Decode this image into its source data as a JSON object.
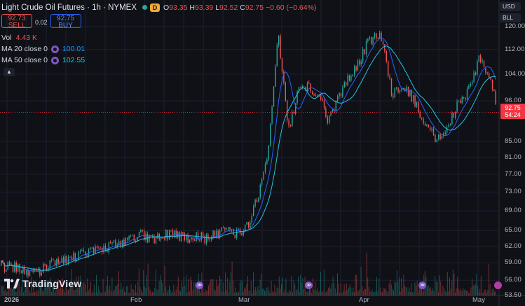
{
  "header": {
    "symbol_title": "Light Crude Oil Futures · 1h · NYMEX",
    "badge": "D",
    "ohlc": {
      "o_label": "O",
      "o": "93.35",
      "h_label": "H",
      "h": "93.39",
      "l_label": "L",
      "l": "92.52",
      "c_label": "C",
      "c": "92.75",
      "change": "−0.60 (−0.64%)"
    }
  },
  "trade": {
    "sell_price": "92.73",
    "sell_label": "SELL",
    "spread": "0.02",
    "buy_price": "92.75",
    "buy_label": "BUY"
  },
  "indicators": {
    "vol_label": "Vol",
    "vol_value": "4.43 K",
    "ma20_label": "MA 20 close 0",
    "ma20_value": "100.01",
    "ma50_label": "MA 50 close 0",
    "ma50_value": "102.55"
  },
  "collapse_icon": "chevron-up-icon",
  "price_scale": {
    "currency": "USD",
    "unit": "BLL",
    "ticks": [
      "120.00",
      "112.00",
      "104.00",
      "96.00",
      "85.00",
      "81.00",
      "77.00",
      "73.00",
      "69.00",
      "65.00",
      "62.00",
      "59.00",
      "56.00",
      "53.50"
    ],
    "current_price": "92.75",
    "countdown": "54:24"
  },
  "time_axis": [
    "2026",
    "Feb",
    "Mar",
    "Apr",
    "May"
  ],
  "logo_text": "TradingView",
  "colors": {
    "up": "#26a69a",
    "down": "#ef5350",
    "ma20": "#2962ff",
    "ma50": "#26c6da",
    "background": "#0f1117",
    "grid": "#1c2030",
    "current": "#f23645"
  },
  "chart_data": {
    "type": "candlestick",
    "title": "Light Crude Oil Futures · 1h · NYMEX",
    "ylim": [
      53.5,
      122
    ],
    "y_scale": "log",
    "x_categories": [
      "2026",
      "Feb",
      "Mar",
      "Apr",
      "May"
    ],
    "close_path": [
      [
        "2026",
        58.5
      ],
      [
        "2026",
        58.0
      ],
      [
        "2026",
        56.8
      ],
      [
        "2026",
        58.5
      ],
      [
        "2026",
        59.5
      ],
      [
        "2026",
        60.0
      ],
      [
        "2026",
        61.0
      ],
      [
        "2026",
        61.5
      ],
      [
        "2026",
        62.5
      ],
      [
        "2026",
        63.0
      ],
      [
        "Feb",
        64.5
      ],
      [
        "Feb",
        63.0
      ],
      [
        "Feb",
        64.0
      ],
      [
        "Feb",
        64.5
      ],
      [
        "Feb",
        63.5
      ],
      [
        "Feb",
        64.0
      ],
      [
        "Feb",
        63.5
      ],
      [
        "Feb",
        64.5
      ],
      [
        "Feb",
        65.0
      ],
      [
        "Feb",
        64.5
      ],
      [
        "Mar",
        66.0
      ],
      [
        "Mar",
        72.0
      ],
      [
        "Mar",
        81.0
      ],
      [
        "Mar",
        117.0
      ],
      [
        "Mar",
        87.0
      ],
      [
        "Mar",
        99.0
      ],
      [
        "Mar",
        100.0
      ],
      [
        "Mar",
        98.0
      ],
      [
        "Mar",
        90.0
      ],
      [
        "Mar",
        97.0
      ],
      [
        "Mar",
        103.0
      ],
      [
        "Mar",
        108.0
      ],
      [
        "Apr",
        115.0
      ],
      [
        "Apr",
        117.0
      ],
      [
        "Apr",
        98.0
      ],
      [
        "Apr",
        101.0
      ],
      [
        "Apr",
        96.0
      ],
      [
        "Apr",
        89.0
      ],
      [
        "Apr",
        85.0
      ],
      [
        "Apr",
        90.0
      ],
      [
        "Apr",
        96.0
      ],
      [
        "Apr",
        100.0
      ],
      [
        "May",
        110.0
      ],
      [
        "May",
        104.0
      ],
      [
        "May",
        103.0
      ],
      [
        "May",
        92.75
      ]
    ],
    "ma20_last": 100.01,
    "ma50_last": 102.55,
    "current_price": 92.75
  }
}
